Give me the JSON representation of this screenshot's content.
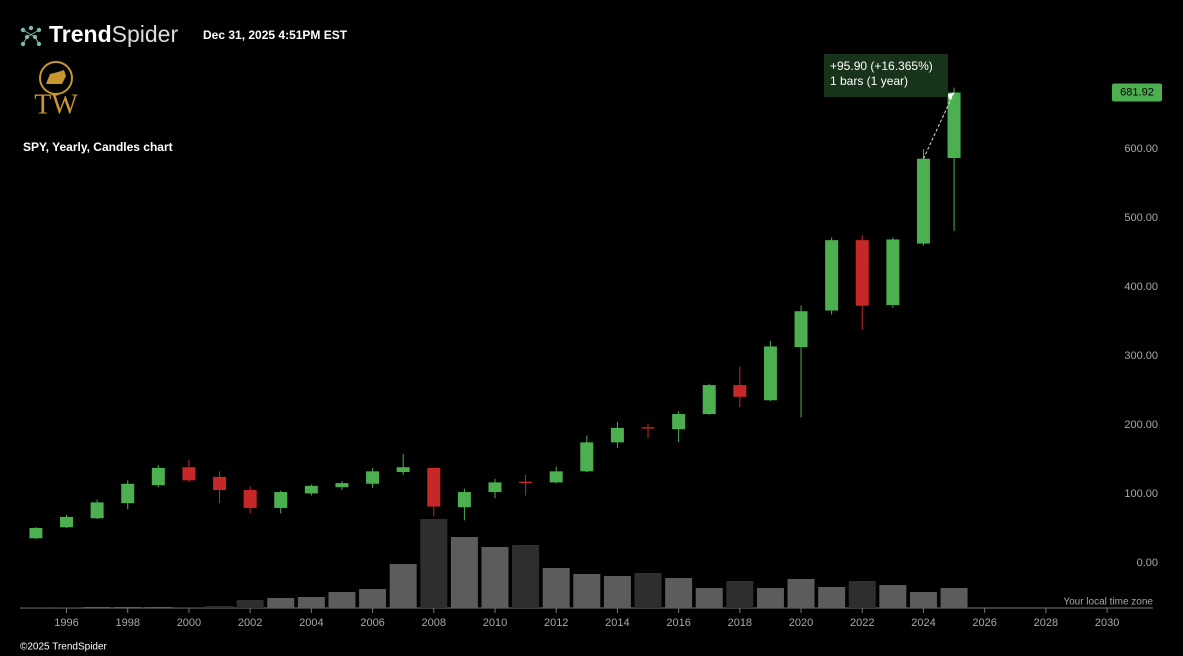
{
  "header": {
    "brand_bold": "Trend",
    "brand_light": "Spider",
    "timestamp": "Dec 31, 2025 4:51PM EST"
  },
  "logo": {
    "text": "TW"
  },
  "chart_data": {
    "type": "candlestick",
    "title": "SPY, Yearly, Candles chart",
    "x": [
      1995,
      1996,
      1997,
      1998,
      1999,
      2000,
      2001,
      2002,
      2003,
      2004,
      2005,
      2006,
      2007,
      2008,
      2009,
      2010,
      2011,
      2012,
      2013,
      2014,
      2015,
      2016,
      2017,
      2018,
      2019,
      2020,
      2021,
      2022,
      2023,
      2024,
      2025
    ],
    "open": [
      36,
      52,
      65,
      87,
      113,
      139,
      125,
      106,
      80,
      101,
      110,
      115,
      132,
      138,
      81,
      103,
      118,
      117,
      133,
      175,
      197,
      194,
      216,
      258,
      236,
      313,
      366,
      468,
      374,
      463,
      587
    ],
    "high": [
      52,
      70,
      92,
      120,
      142,
      150,
      133,
      111,
      105,
      114,
      119,
      138,
      158,
      138,
      108,
      122,
      128,
      140,
      185,
      205,
      202,
      220,
      260,
      285,
      322,
      373,
      472,
      475,
      472,
      600,
      689
    ],
    "low": [
      35,
      51,
      64,
      78,
      110,
      118,
      87,
      72,
      72,
      98,
      106,
      109,
      128,
      68,
      62,
      94,
      98,
      116,
      132,
      167,
      181,
      175,
      215,
      226,
      235,
      211,
      360,
      338,
      370,
      460,
      481
    ],
    "close": [
      51,
      67,
      88,
      115,
      138,
      120,
      106,
      80,
      103,
      112,
      116,
      133,
      139,
      82,
      103,
      117,
      116,
      133,
      175,
      196,
      195,
      216,
      258,
      241,
      314,
      365,
      468,
      373,
      469,
      586,
      681.92
    ],
    "volume": [
      0.5,
      0.5,
      1,
      1,
      1,
      1,
      2,
      8,
      10,
      11,
      16,
      19,
      44,
      89,
      71,
      61,
      63,
      40,
      34,
      32,
      35,
      30,
      20,
      27,
      20,
      29,
      21,
      27,
      23,
      16,
      20
    ],
    "volume_lim": [
      0,
      190
    ],
    "up_color": "#4caf50",
    "down_color": "#c62828",
    "volume_up_color": "#5c5c5c",
    "volume_down_color": "#2e2e2e",
    "xlim": [
      1994.48,
      2031.5
    ],
    "xticks": [
      1996,
      1998,
      2000,
      2002,
      2004,
      2006,
      2008,
      2010,
      2012,
      2014,
      2016,
      2018,
      2020,
      2022,
      2024,
      2026,
      2028,
      2030
    ],
    "ylim": [
      -65,
      758
    ],
    "yticks": [
      {
        "value": 0,
        "label": "0.00"
      },
      {
        "value": 100,
        "label": "100.00"
      },
      {
        "value": 200,
        "label": "200.00"
      },
      {
        "value": 300,
        "label": "300.00"
      },
      {
        "value": 400,
        "label": "400.00"
      },
      {
        "value": 500,
        "label": "500.00"
      },
      {
        "value": 600,
        "label": "600.00"
      }
    ],
    "measure": {
      "change": "+95.90 (+16.365%)",
      "span": "1 bars (1 year)"
    },
    "timezone_note": "Your local time zone"
  },
  "footer": {
    "copyright": "©2025 TrendSpider"
  }
}
